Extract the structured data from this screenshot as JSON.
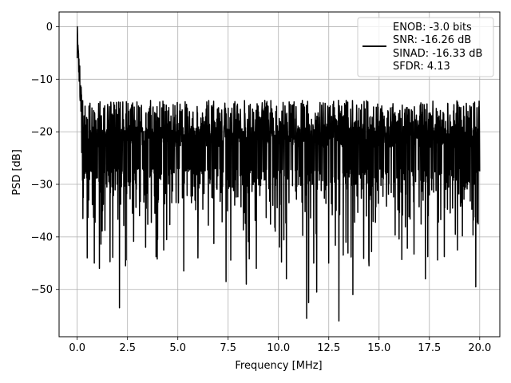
{
  "chart_data": {
    "type": "line",
    "title": "",
    "xlabel": "Frequency [MHz]",
    "ylabel": "PSD [dB]",
    "xlim": [
      -0.9,
      21.0
    ],
    "ylim": [
      -59,
      2.8
    ],
    "grid": true,
    "legend_position": "top-right",
    "x_ticks": [
      0.0,
      2.5,
      5.0,
      7.5,
      10.0,
      12.5,
      15.0,
      17.5,
      20.0
    ],
    "x_tick_labels": [
      "0.0",
      "2.5",
      "5.0",
      "7.5",
      "10.0",
      "12.5",
      "15.0",
      "17.5",
      "20.0"
    ],
    "y_ticks": [
      0,
      -10,
      -20,
      -30,
      -40,
      -50
    ],
    "y_tick_labels": [
      "0",
      "−10",
      "−20",
      "−30",
      "−40",
      "−50"
    ],
    "series": [
      {
        "color": "#000000",
        "x_range": [
          0,
          20
        ],
        "peak": {
          "x": 0.0,
          "y": 0.0
        },
        "floor_band": [
          -33,
          -13
        ],
        "notable_dips": [
          {
            "x": 0.5,
            "y": -44
          },
          {
            "x": 0.85,
            "y": -45
          },
          {
            "x": 1.1,
            "y": -46
          },
          {
            "x": 2.1,
            "y": -53.5
          },
          {
            "x": 2.4,
            "y": -45.5
          },
          {
            "x": 3.4,
            "y": -42
          },
          {
            "x": 4.3,
            "y": -42.5
          },
          {
            "x": 5.3,
            "y": -46.5
          },
          {
            "x": 6.0,
            "y": -44
          },
          {
            "x": 7.4,
            "y": -48.5
          },
          {
            "x": 8.4,
            "y": -49
          },
          {
            "x": 8.9,
            "y": -46
          },
          {
            "x": 10.4,
            "y": -48
          },
          {
            "x": 11.4,
            "y": -55.5
          },
          {
            "x": 11.5,
            "y": -52.5
          },
          {
            "x": 11.9,
            "y": -50.5
          },
          {
            "x": 12.5,
            "y": -45
          },
          {
            "x": 13.0,
            "y": -56
          },
          {
            "x": 13.7,
            "y": -51
          },
          {
            "x": 14.5,
            "y": -45.5
          },
          {
            "x": 17.3,
            "y": -48
          },
          {
            "x": 18.9,
            "y": -42.5
          },
          {
            "x": 19.8,
            "y": -49.5
          }
        ]
      }
    ],
    "legend": {
      "lines": [
        "ENOB: -3.0 bits",
        "SNR: -16.26 dB",
        "SINAD: -16.33 dB",
        "SFDR: 4.13"
      ]
    }
  }
}
